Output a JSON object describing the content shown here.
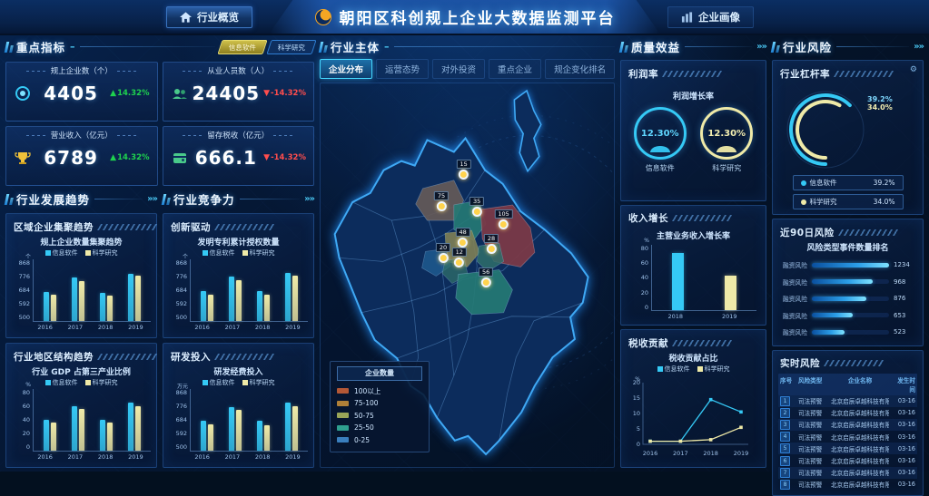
{
  "header": {
    "left_nav": "行业概览",
    "title": "朝阳区科创规上企业大数据监测平台",
    "right_nav": "企业画像"
  },
  "colors": {
    "accent_cyan": "#35c9f5",
    "accent_yellow": "#efeaa8",
    "up_green": "#1ed24e",
    "down_red": "#ff4d4d"
  },
  "kpi": {
    "title": "重点指标",
    "dash": "–",
    "filters": [
      {
        "label": "信息软件",
        "active": true
      },
      {
        "label": "科学研究",
        "active": false
      }
    ],
    "cards": [
      {
        "label": "规上企业数（个）",
        "value": "4405",
        "delta": "14.32%",
        "direction": "up",
        "icon": "medal-icon"
      },
      {
        "label": "从业人员数（人）",
        "value": "24405",
        "delta": "-14.32%",
        "direction": "down",
        "icon": "people-icon"
      },
      {
        "label": "营业收入（亿元）",
        "value": "6789",
        "delta": "14.32%",
        "direction": "up",
        "icon": "trophy-icon"
      },
      {
        "label": "留存税收（亿元）",
        "value": "666.1",
        "delta": "-14.32%",
        "direction": "down",
        "icon": "wallet-icon"
      }
    ]
  },
  "trend": {
    "title": "行业发展趋势",
    "arrows": "»»",
    "cards": [
      {
        "subtitle": "区域企业集聚趋势",
        "chart": {
          "type": "bar",
          "title": "规上企业数量集聚趋势",
          "unit": "个",
          "ymin": 500,
          "ymax": 868,
          "ticks": [
            868,
            776,
            684,
            592,
            500
          ],
          "categories": [
            "2016",
            "2017",
            "2018",
            "2019"
          ],
          "series": [
            {
              "name": "信息软件",
              "color": "#35c9f5",
              "values": [
                672,
                758,
                670,
                784
              ]
            },
            {
              "name": "科学研究",
              "color": "#efeaa8",
              "values": [
                655,
                740,
                653,
                768
              ]
            }
          ]
        }
      },
      {
        "subtitle": "行业地区结构趋势",
        "chart": {
          "type": "bar",
          "title": "行业 GDP 占第三产业比例",
          "unit": "%",
          "ymin": 0,
          "ymax": 80,
          "ticks": [
            80,
            60,
            40,
            20,
            0
          ],
          "categories": [
            "2016",
            "2017",
            "2018",
            "2019"
          ],
          "series": [
            {
              "name": "信息软件",
              "color": "#35c9f5",
              "values": [
                40,
                58,
                40,
                62
              ]
            },
            {
              "name": "科学研究",
              "color": "#efeaa8",
              "values": [
                37,
                54,
                37,
                58
              ]
            }
          ]
        }
      }
    ]
  },
  "compete": {
    "title": "行业竞争力",
    "arrows": "»»",
    "cards": [
      {
        "subtitle": "创新驱动",
        "chart": {
          "type": "bar",
          "title": "发明专利累计授权数量",
          "unit": "个",
          "ymin": 500,
          "ymax": 868,
          "ticks": [
            868,
            776,
            684,
            592,
            500
          ],
          "categories": [
            "2016",
            "2017",
            "2018",
            "2019"
          ],
          "series": [
            {
              "name": "信息软件",
              "color": "#35c9f5",
              "values": [
                678,
                764,
                676,
                786
              ]
            },
            {
              "name": "科学研究",
              "color": "#efeaa8",
              "values": [
                658,
                746,
                658,
                770
              ]
            }
          ]
        }
      },
      {
        "subtitle": "研发投入",
        "chart": {
          "type": "bar",
          "title": "研发经费投入",
          "unit": "万元",
          "ymin": 500,
          "ymax": 868,
          "ticks": [
            868,
            776,
            684,
            592,
            500
          ],
          "categories": [
            "2016",
            "2017",
            "2018",
            "2019"
          ],
          "series": [
            {
              "name": "信息软件",
              "color": "#35c9f5",
              "values": [
                678,
                760,
                676,
                788
              ]
            },
            {
              "name": "科学研究",
              "color": "#efeaa8",
              "values": [
                656,
                744,
                654,
                766
              ]
            }
          ]
        }
      }
    ]
  },
  "main": {
    "title": "行业主体",
    "dash": "–",
    "tabs": [
      {
        "label": "企业分布",
        "active": true
      },
      {
        "label": "运营态势",
        "active": false
      },
      {
        "label": "对外投资",
        "active": false
      },
      {
        "label": "重点企业",
        "active": false
      },
      {
        "label": "规企变化排名",
        "active": false
      }
    ],
    "legend": {
      "title": "企业数量",
      "items": [
        {
          "label": "100以上",
          "color": "#b45836"
        },
        {
          "label": "75-100",
          "color": "#b08038"
        },
        {
          "label": "50-75",
          "color": "#9aa558"
        },
        {
          "label": "25-50",
          "color": "#2f9f8f"
        },
        {
          "label": "0-25",
          "color": "#3a7fbe"
        }
      ]
    },
    "markers": [
      {
        "value": "15",
        "x": 48.8,
        "y": 25.0
      },
      {
        "value": "75",
        "x": 41.2,
        "y": 33.3
      },
      {
        "value": "35",
        "x": 53.3,
        "y": 34.8
      },
      {
        "value": "105",
        "x": 62.4,
        "y": 38.1
      },
      {
        "value": "48",
        "x": 48.5,
        "y": 42.9
      },
      {
        "value": "28",
        "x": 58.2,
        "y": 44.5
      },
      {
        "value": "20",
        "x": 41.8,
        "y": 46.7
      },
      {
        "value": "12",
        "x": 47.3,
        "y": 48.1
      },
      {
        "value": "56",
        "x": 56.4,
        "y": 53.3
      }
    ]
  },
  "quality": {
    "title": "质量效益",
    "arrows": "»»",
    "profit": {
      "subtitle": "利润率",
      "chart_title": "利润增长率",
      "gauges": [
        {
          "value": "12.30%",
          "label": "信息软件",
          "color": "#35c9f5"
        },
        {
          "value": "12.30%",
          "label": "科学研究",
          "color": "#efeaa8"
        }
      ]
    },
    "income": {
      "subtitle": "收入增长",
      "chart": {
        "type": "bar",
        "title": "主营业务收入增长率",
        "unit": "%",
        "ymin": 0,
        "ymax": 80,
        "ticks": [
          80,
          60,
          40,
          20,
          0
        ],
        "bars": [
          {
            "label": "2018",
            "value": 70,
            "color": "#35c9f5"
          },
          {
            "label": "2019",
            "value": 42,
            "color": "#efeaa8"
          }
        ]
      }
    },
    "tax": {
      "subtitle": "税收贡献",
      "chart": {
        "type": "line",
        "title": "税收贡献占比",
        "unit": "%",
        "ymin": 0,
        "ymax": 20,
        "ticks": [
          20,
          15,
          10,
          5,
          0
        ],
        "x": [
          "2016",
          "2017",
          "2018",
          "2019"
        ],
        "series": [
          {
            "name": "信息软件",
            "color": "#35c9f5",
            "values": [
              1,
              1,
              14.5,
              10.5
            ]
          },
          {
            "name": "科学研究",
            "color": "#efeaa8",
            "values": [
              1,
              1,
              1.5,
              5.5
            ]
          }
        ]
      }
    }
  },
  "risk": {
    "title": "行业风险",
    "arrows": "»»",
    "leverage": {
      "subtitle": "行业杠杆率",
      "gear_icon": "⚙",
      "series": [
        {
          "name": "信息软件",
          "value": "39.2%",
          "pct": 39.2,
          "color": "#35c9f5"
        },
        {
          "name": "科学研究",
          "value": "34.0%",
          "pct": 34.0,
          "color": "#efeaa8"
        }
      ]
    },
    "recent": {
      "subtitle": "近90日风险",
      "chart_title": "风险类型事件数量排名",
      "max": 1234,
      "bars": [
        {
          "label": "融资风险",
          "value": 1234
        },
        {
          "label": "融资风险",
          "value": 968
        },
        {
          "label": "融资风险",
          "value": 876
        },
        {
          "label": "融资风险",
          "value": 653
        },
        {
          "label": "融资风险",
          "value": 523
        }
      ]
    },
    "realtime": {
      "subtitle": "实时风险",
      "columns": [
        "序号",
        "风险类型",
        "企业名称",
        "发生时间"
      ],
      "rows": [
        {
          "no": "1",
          "type": "司法预警",
          "name": "北京启辰卓越科技有限公司",
          "time": "03-16"
        },
        {
          "no": "2",
          "type": "司法预警",
          "name": "北京启辰卓越科技有限公司",
          "time": "03-16"
        },
        {
          "no": "3",
          "type": "司法预警",
          "name": "北京启辰卓越科技有限公司",
          "time": "03-16"
        },
        {
          "no": "4",
          "type": "司法预警",
          "name": "北京启辰卓越科技有限公司",
          "time": "03-16"
        },
        {
          "no": "5",
          "type": "司法预警",
          "name": "北京启辰卓越科技有限公司",
          "time": "03-16"
        },
        {
          "no": "6",
          "type": "司法预警",
          "name": "北京启辰卓越科技有限公司",
          "time": "03-16"
        },
        {
          "no": "7",
          "type": "司法预警",
          "name": "北京启辰卓越科技有限公司",
          "time": "03-16"
        },
        {
          "no": "8",
          "type": "司法预警",
          "name": "北京启辰卓越科技有限公司",
          "time": "03-16"
        }
      ]
    }
  }
}
